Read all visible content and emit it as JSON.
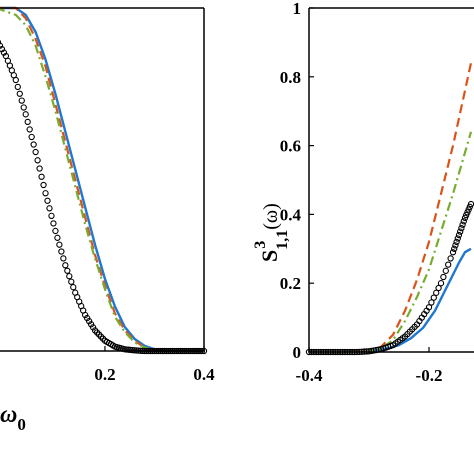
{
  "chart_data": [
    {
      "type": "line",
      "panel": "left (partially cropped)",
      "xlabel_fragment": "ω",
      "xlabel_subscript": "0",
      "xlim": [
        -0.02,
        0.4
      ],
      "ylim": [
        0,
        1
      ],
      "xticks": [
        0.2,
        0.4
      ],
      "xtick_labels": [
        "0.2",
        "0.4"
      ],
      "series": [
        {
          "style": "solid",
          "color": "#1f77d0",
          "x": [
            -0.02,
            0.02,
            0.04,
            0.06,
            0.08,
            0.1,
            0.12,
            0.14,
            0.16,
            0.18,
            0.2,
            0.22,
            0.24,
            0.26,
            0.28,
            0.3,
            0.32,
            0.34,
            0.36,
            0.4
          ],
          "y": [
            1.0,
            1.0,
            0.98,
            0.93,
            0.85,
            0.75,
            0.64,
            0.53,
            0.42,
            0.31,
            0.21,
            0.13,
            0.07,
            0.035,
            0.015,
            0.005,
            0.001,
            0.0,
            0.0,
            0.0
          ]
        },
        {
          "style": "dashed",
          "color": "#d95319",
          "x": [
            -0.02,
            0.02,
            0.04,
            0.06,
            0.08,
            0.1,
            0.12,
            0.14,
            0.16,
            0.18,
            0.2,
            0.22,
            0.24,
            0.26,
            0.28,
            0.3,
            0.32,
            0.34,
            0.4
          ],
          "y": [
            1.0,
            1.0,
            0.97,
            0.91,
            0.83,
            0.72,
            0.61,
            0.5,
            0.39,
            0.28,
            0.19,
            0.11,
            0.06,
            0.03,
            0.01,
            0.003,
            0.0,
            0.0,
            0.0
          ]
        },
        {
          "style": "dashdot",
          "color": "#77ac30",
          "x": [
            -0.02,
            0.02,
            0.04,
            0.06,
            0.08,
            0.1,
            0.12,
            0.14,
            0.16,
            0.18,
            0.2,
            0.22,
            0.24,
            0.26,
            0.28,
            0.3,
            0.32,
            0.34,
            0.4
          ],
          "y": [
            1.0,
            0.98,
            0.95,
            0.89,
            0.8,
            0.7,
            0.59,
            0.48,
            0.37,
            0.27,
            0.18,
            0.1,
            0.055,
            0.025,
            0.01,
            0.003,
            0.0,
            0.0,
            0.0
          ]
        },
        {
          "style": "circles",
          "color": "#000000",
          "x": [
            -0.02,
            0.0,
            0.02,
            0.04,
            0.06,
            0.08,
            0.1,
            0.12,
            0.14,
            0.16,
            0.18,
            0.2,
            0.22,
            0.24,
            0.26,
            0.28,
            0.3,
            0.32,
            0.34,
            0.36,
            0.38,
            0.4
          ],
          "y": [
            0.91,
            0.86,
            0.79,
            0.69,
            0.58,
            0.46,
            0.35,
            0.25,
            0.17,
            0.105,
            0.06,
            0.03,
            0.013,
            0.005,
            0.002,
            0.0,
            0.0,
            0.0,
            0.0,
            0.0,
            0.0,
            0.0
          ]
        }
      ]
    },
    {
      "type": "line",
      "panel": "right (partially cropped)",
      "ylabel_main": "S",
      "ylabel_super": "3",
      "ylabel_sub": "1,1",
      "ylabel_tail": "(ω)",
      "xlim": [
        -0.4,
        -0.125
      ],
      "ylim": [
        0,
        1
      ],
      "xticks": [
        -0.4,
        -0.2
      ],
      "xtick_labels": [
        "-0.4",
        "-0.2"
      ],
      "yticks": [
        0,
        0.2,
        0.4,
        0.6,
        0.8,
        1
      ],
      "ytick_labels": [
        "0",
        "0.2",
        "0.4",
        "0.6",
        "0.8",
        "1"
      ],
      "series": [
        {
          "style": "solid",
          "color": "#1f77d0",
          "x": [
            -0.4,
            -0.35,
            -0.3,
            -0.27,
            -0.25,
            -0.23,
            -0.21,
            -0.19,
            -0.17,
            -0.15,
            -0.14,
            -0.13
          ],
          "y": [
            0.0,
            0.0,
            0.002,
            0.01,
            0.02,
            0.04,
            0.07,
            0.12,
            0.19,
            0.26,
            0.29,
            0.3
          ]
        },
        {
          "style": "dashed",
          "color": "#d95319",
          "x": [
            -0.4,
            -0.33,
            -0.3,
            -0.28,
            -0.26,
            -0.24,
            -0.22,
            -0.2,
            -0.18,
            -0.16,
            -0.14,
            -0.13
          ],
          "y": [
            0.0,
            0.0,
            0.003,
            0.015,
            0.05,
            0.12,
            0.21,
            0.32,
            0.46,
            0.6,
            0.76,
            0.84
          ]
        },
        {
          "style": "dashdot",
          "color": "#77ac30",
          "x": [
            -0.4,
            -0.33,
            -0.3,
            -0.28,
            -0.26,
            -0.24,
            -0.22,
            -0.2,
            -0.18,
            -0.16,
            -0.14,
            -0.13
          ],
          "y": [
            0.0,
            0.0,
            0.002,
            0.01,
            0.035,
            0.09,
            0.16,
            0.24,
            0.35,
            0.46,
            0.58,
            0.64
          ]
        },
        {
          "style": "circles",
          "color": "#000000",
          "x": [
            -0.4,
            -0.38,
            -0.36,
            -0.34,
            -0.32,
            -0.3,
            -0.28,
            -0.26,
            -0.24,
            -0.22,
            -0.2,
            -0.18,
            -0.16,
            -0.15,
            -0.14,
            -0.13
          ],
          "y": [
            0.0,
            0.0,
            0.0,
            0.0,
            0.0,
            0.002,
            0.008,
            0.02,
            0.045,
            0.08,
            0.13,
            0.2,
            0.29,
            0.34,
            0.39,
            0.43
          ]
        }
      ]
    }
  ]
}
